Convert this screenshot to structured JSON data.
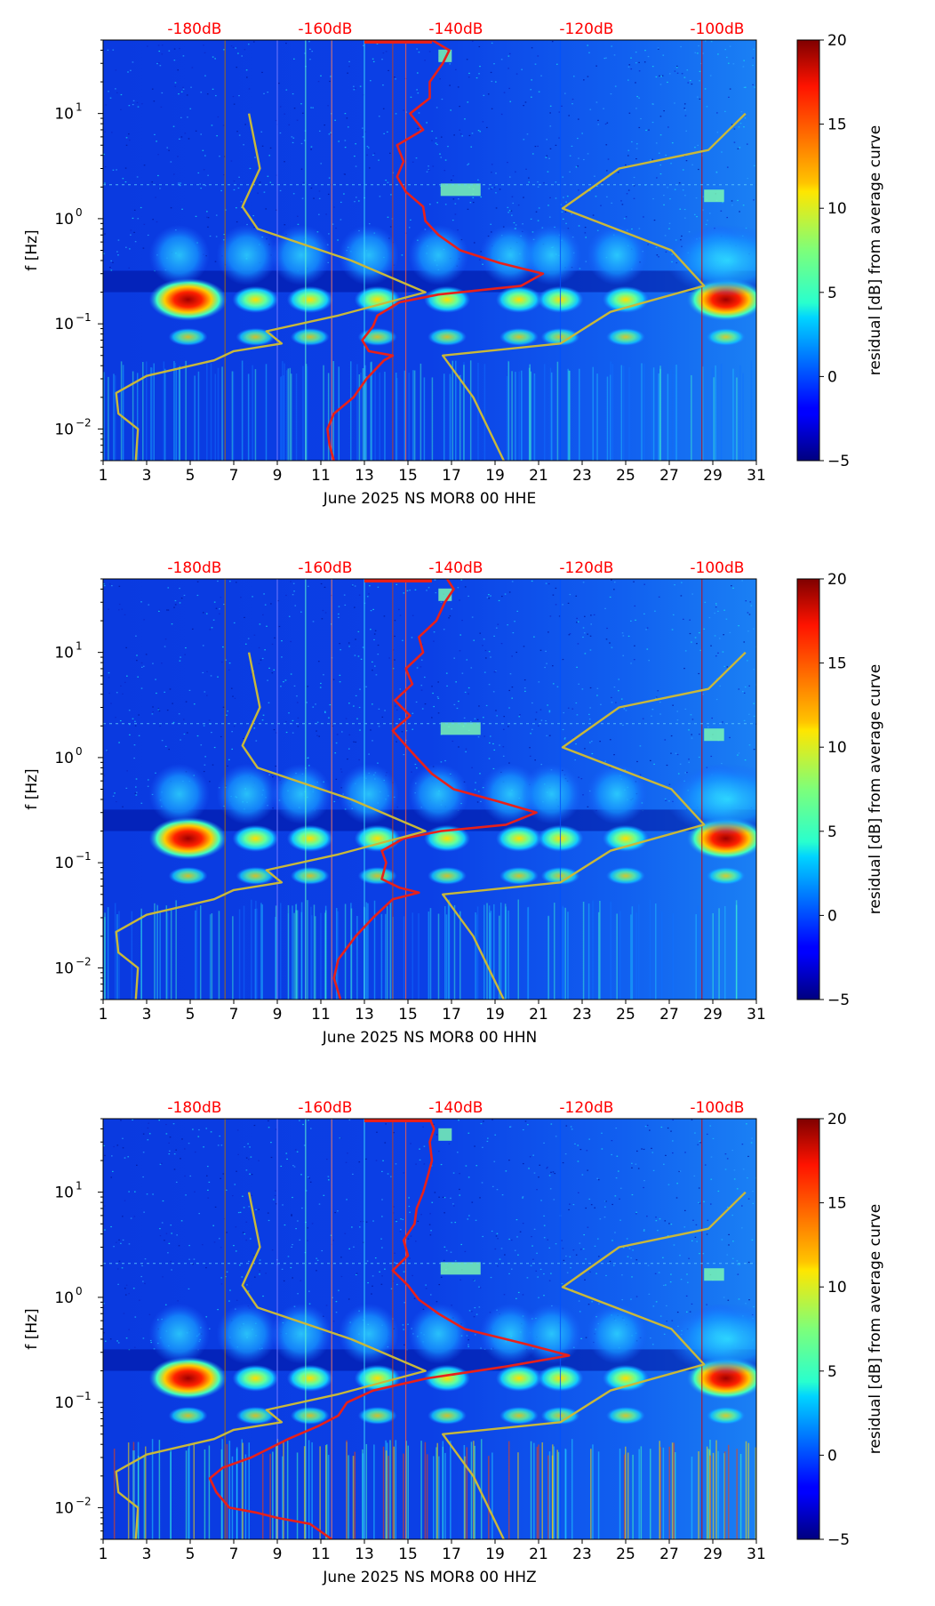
{
  "chart_data": [
    {
      "type": "heatmap",
      "xlabel": "June 2025 NS MOR8 00 HHE",
      "ylabel": "f [Hz]",
      "xlim": [
        1,
        31
      ],
      "x_ticks": [
        "1",
        "3",
        "5",
        "7",
        "9",
        "11",
        "13",
        "15",
        "17",
        "19",
        "21",
        "23",
        "25",
        "27",
        "29",
        "31"
      ],
      "yscale": "log",
      "ylim": [
        0.005,
        50
      ],
      "y_ticks": [
        {
          "value": 0.01,
          "base": "10",
          "exp": "−2"
        },
        {
          "value": 0.1,
          "base": "10",
          "exp": "−1"
        },
        {
          "value": 1,
          "base": "10",
          "exp": "0"
        },
        {
          "value": 10,
          "base": "10",
          "exp": "1"
        }
      ],
      "top_axis_labels": [
        "-180dB",
        "-160dB",
        "-140dB",
        "-120dB",
        "-100dB"
      ],
      "top_axis_color": "#ff0000",
      "colorbar": {
        "label": "residual [dB] from average curve",
        "range": [
          -5,
          20
        ],
        "ticks": [
          "−5",
          "0",
          "5",
          "10",
          "15",
          "20"
        ],
        "colormap": "jet"
      },
      "curves": [
        {
          "name": "red curve",
          "color": "#e8201a",
          "points": [
            [
              11.6,
              0.005
            ],
            [
              11.4,
              0.007
            ],
            [
              11.3,
              0.01
            ],
            [
              11.6,
              0.014
            ],
            [
              12.5,
              0.02
            ],
            [
              13.1,
              0.03
            ],
            [
              13.9,
              0.045
            ],
            [
              14.3,
              0.05
            ],
            [
              13.2,
              0.055
            ],
            [
              12.9,
              0.07
            ],
            [
              13.4,
              0.095
            ],
            [
              13.6,
              0.12
            ],
            [
              14.6,
              0.16
            ],
            [
              16.4,
              0.19
            ],
            [
              20.2,
              0.23
            ],
            [
              21.2,
              0.3
            ],
            [
              19.2,
              0.38
            ],
            [
              17.4,
              0.5
            ],
            [
              16.4,
              0.7
            ],
            [
              15.8,
              0.95
            ],
            [
              15.7,
              1.3
            ],
            [
              14.9,
              1.8
            ],
            [
              14.5,
              2.5
            ],
            [
              14.8,
              3.5
            ],
            [
              14.5,
              5
            ],
            [
              15.7,
              7
            ],
            [
              15.1,
              10
            ],
            [
              16.0,
              14
            ],
            [
              16.0,
              20
            ],
            [
              16.6,
              30
            ],
            [
              16.9,
              40
            ],
            [
              16.1,
              50
            ]
          ]
        },
        {
          "name": "yellow curve",
          "color": "#c9b83a",
          "points": [
            [
              7.7,
              10
            ],
            [
              8.2,
              3
            ],
            [
              7.4,
              1.3
            ],
            [
              8.1,
              0.8
            ],
            [
              12.4,
              0.4
            ],
            [
              15.8,
              0.2
            ],
            [
              11.8,
              0.12
            ],
            [
              8.5,
              0.085
            ],
            [
              9.2,
              0.065
            ],
            [
              7.0,
              0.055
            ],
            [
              6.1,
              0.045
            ],
            [
              3.0,
              0.032
            ],
            [
              1.6,
              0.022
            ],
            [
              1.7,
              0.014
            ],
            [
              2.6,
              0.01
            ],
            [
              2.5,
              0.005
            ]
          ]
        },
        {
          "name": "yellow curve",
          "color": "#c9b83a",
          "points": [
            [
              19.4,
              0.005
            ],
            [
              18.0,
              0.02
            ],
            [
              16.6,
              0.05
            ],
            [
              22.0,
              0.065
            ],
            [
              24.3,
              0.13
            ],
            [
              28.6,
              0.23
            ],
            [
              27.1,
              0.5
            ],
            [
              22.1,
              1.25
            ],
            [
              24.7,
              3
            ],
            [
              28.8,
              4.5
            ],
            [
              30.5,
              10
            ]
          ]
        }
      ]
    },
    {
      "type": "heatmap",
      "xlabel": "June 2025 NS MOR8 00 HHN",
      "ylabel": "f [Hz]",
      "xlim": [
        1,
        31
      ],
      "x_ticks": [
        "1",
        "3",
        "5",
        "7",
        "9",
        "11",
        "13",
        "15",
        "17",
        "19",
        "21",
        "23",
        "25",
        "27",
        "29",
        "31"
      ],
      "yscale": "log",
      "ylim": [
        0.005,
        50
      ],
      "y_ticks": [
        {
          "value": 0.01,
          "base": "10",
          "exp": "−2"
        },
        {
          "value": 0.1,
          "base": "10",
          "exp": "−1"
        },
        {
          "value": 1,
          "base": "10",
          "exp": "0"
        },
        {
          "value": 10,
          "base": "10",
          "exp": "1"
        }
      ],
      "top_axis_labels": [
        "-180dB",
        "-160dB",
        "-140dB",
        "-120dB",
        "-100dB"
      ],
      "top_axis_color": "#ff0000",
      "colorbar": {
        "label": "residual [dB] from average curve",
        "range": [
          -5,
          20
        ],
        "ticks": [
          "−5",
          "0",
          "5",
          "10",
          "15",
          "20"
        ],
        "colormap": "jet"
      },
      "curves": [
        {
          "name": "red curve",
          "color": "#e8201a",
          "points": [
            [
              11.9,
              0.005
            ],
            [
              11.6,
              0.008
            ],
            [
              11.8,
              0.012
            ],
            [
              12.6,
              0.02
            ],
            [
              13.4,
              0.03
            ],
            [
              14.3,
              0.045
            ],
            [
              15.5,
              0.052
            ],
            [
              14.6,
              0.058
            ],
            [
              13.8,
              0.07
            ],
            [
              14.0,
              0.1
            ],
            [
              13.8,
              0.13
            ],
            [
              14.8,
              0.17
            ],
            [
              16.5,
              0.2
            ],
            [
              19.5,
              0.23
            ],
            [
              20.9,
              0.3
            ],
            [
              19.2,
              0.38
            ],
            [
              17.1,
              0.5
            ],
            [
              16.1,
              0.7
            ],
            [
              15.4,
              1.0
            ],
            [
              14.9,
              1.3
            ],
            [
              14.3,
              1.8
            ],
            [
              15.1,
              2.5
            ],
            [
              14.4,
              3.5
            ],
            [
              15.2,
              5
            ],
            [
              14.9,
              7
            ],
            [
              15.7,
              10
            ],
            [
              15.5,
              14
            ],
            [
              16.3,
              20
            ],
            [
              16.7,
              30
            ],
            [
              17.1,
              40
            ],
            [
              16.8,
              50
            ]
          ]
        },
        {
          "name": "yellow curve",
          "color": "#c9b83a",
          "points": [
            [
              7.7,
              10
            ],
            [
              8.2,
              3
            ],
            [
              7.4,
              1.3
            ],
            [
              8.1,
              0.8
            ],
            [
              12.4,
              0.4
            ],
            [
              15.8,
              0.2
            ],
            [
              11.8,
              0.12
            ],
            [
              8.5,
              0.085
            ],
            [
              9.2,
              0.065
            ],
            [
              7.0,
              0.055
            ],
            [
              6.1,
              0.045
            ],
            [
              3.0,
              0.032
            ],
            [
              1.6,
              0.022
            ],
            [
              1.7,
              0.014
            ],
            [
              2.6,
              0.01
            ],
            [
              2.5,
              0.005
            ]
          ]
        },
        {
          "name": "yellow curve",
          "color": "#c9b83a",
          "points": [
            [
              19.4,
              0.005
            ],
            [
              18.0,
              0.02
            ],
            [
              16.6,
              0.05
            ],
            [
              22.0,
              0.065
            ],
            [
              24.3,
              0.13
            ],
            [
              28.6,
              0.23
            ],
            [
              27.1,
              0.5
            ],
            [
              22.1,
              1.25
            ],
            [
              24.7,
              3
            ],
            [
              28.8,
              4.5
            ],
            [
              30.5,
              10
            ]
          ]
        }
      ]
    },
    {
      "type": "heatmap",
      "xlabel": "June 2025 NS MOR8 00 HHZ",
      "ylabel": "f [Hz]",
      "xlim": [
        1,
        31
      ],
      "x_ticks": [
        "1",
        "3",
        "5",
        "7",
        "9",
        "11",
        "13",
        "15",
        "17",
        "19",
        "21",
        "23",
        "25",
        "27",
        "29",
        "31"
      ],
      "yscale": "log",
      "ylim": [
        0.005,
        50
      ],
      "y_ticks": [
        {
          "value": 0.01,
          "base": "10",
          "exp": "−2"
        },
        {
          "value": 0.1,
          "base": "10",
          "exp": "−1"
        },
        {
          "value": 1,
          "base": "10",
          "exp": "0"
        },
        {
          "value": 10,
          "base": "10",
          "exp": "1"
        }
      ],
      "top_axis_labels": [
        "-180dB",
        "-160dB",
        "-140dB",
        "-120dB",
        "-100dB"
      ],
      "top_axis_color": "#ff0000",
      "colorbar": {
        "label": "residual [dB] from average curve",
        "range": [
          -5,
          20
        ],
        "ticks": [
          "−5",
          "0",
          "5",
          "10",
          "15",
          "20"
        ],
        "colormap": "jet"
      },
      "curves": [
        {
          "name": "red curve",
          "color": "#e8201a",
          "points": [
            [
              11.5,
              0.005
            ],
            [
              10.5,
              0.007
            ],
            [
              9.0,
              0.008
            ],
            [
              8.0,
              0.009
            ],
            [
              6.8,
              0.01
            ],
            [
              6.2,
              0.014
            ],
            [
              5.9,
              0.019
            ],
            [
              6.5,
              0.024
            ],
            [
              7.8,
              0.03
            ],
            [
              9.5,
              0.045
            ],
            [
              10.9,
              0.06
            ],
            [
              11.8,
              0.075
            ],
            [
              12.2,
              0.1
            ],
            [
              13.4,
              0.13
            ],
            [
              15.9,
              0.17
            ],
            [
              19.5,
              0.22
            ],
            [
              22.4,
              0.28
            ],
            [
              20.4,
              0.36
            ],
            [
              17.6,
              0.5
            ],
            [
              16.4,
              0.7
            ],
            [
              15.5,
              0.95
            ],
            [
              15.0,
              1.3
            ],
            [
              14.3,
              1.8
            ],
            [
              15.0,
              2.5
            ],
            [
              14.8,
              3.5
            ],
            [
              15.3,
              5
            ],
            [
              15.4,
              7
            ],
            [
              15.7,
              10
            ],
            [
              15.9,
              14
            ],
            [
              16.1,
              20
            ],
            [
              16.0,
              30
            ],
            [
              16.2,
              40
            ],
            [
              16.0,
              50
            ]
          ]
        },
        {
          "name": "yellow curve",
          "color": "#c9b83a",
          "points": [
            [
              7.7,
              10
            ],
            [
              8.2,
              3
            ],
            [
              7.4,
              1.3
            ],
            [
              8.1,
              0.8
            ],
            [
              12.4,
              0.4
            ],
            [
              15.8,
              0.2
            ],
            [
              11.8,
              0.12
            ],
            [
              8.5,
              0.085
            ],
            [
              9.2,
              0.065
            ],
            [
              7.0,
              0.055
            ],
            [
              6.1,
              0.045
            ],
            [
              3.0,
              0.032
            ],
            [
              1.6,
              0.022
            ],
            [
              1.7,
              0.014
            ],
            [
              2.6,
              0.01
            ],
            [
              2.5,
              0.005
            ]
          ]
        },
        {
          "name": "yellow curve",
          "color": "#c9b83a",
          "points": [
            [
              19.4,
              0.005
            ],
            [
              18.0,
              0.02
            ],
            [
              16.6,
              0.05
            ],
            [
              22.0,
              0.065
            ],
            [
              24.3,
              0.13
            ],
            [
              28.6,
              0.23
            ],
            [
              27.1,
              0.5
            ],
            [
              22.1,
              1.25
            ],
            [
              24.7,
              3
            ],
            [
              28.8,
              4.5
            ],
            [
              30.5,
              10
            ]
          ]
        }
      ]
    }
  ]
}
